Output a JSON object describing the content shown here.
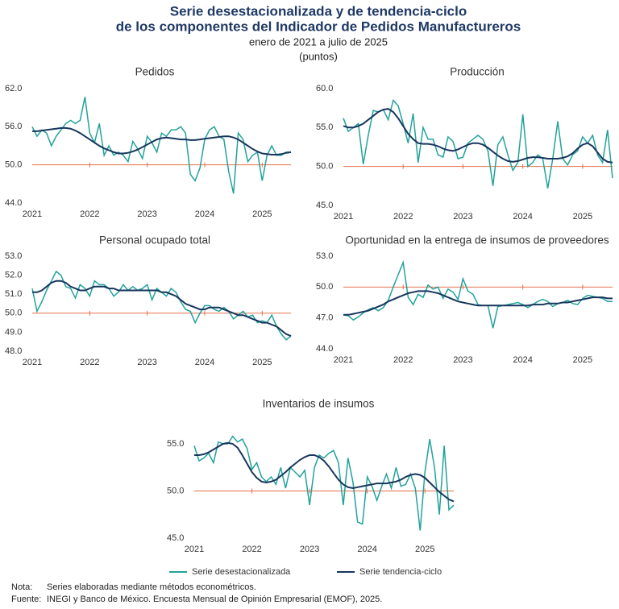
{
  "title": [
    "Serie desestacionalizada y de tendencia-ciclo",
    "de los componentes del Indicador de Pedidos Manufactureros"
  ],
  "subtitle": "enero de 2021 a julio de 2025",
  "units": "(puntos)",
  "legend": [
    {
      "name": "Serie desestacionalizada",
      "color": "#22a29c"
    },
    {
      "name": "Serie tendencia-ciclo",
      "color": "#17365d"
    }
  ],
  "notes": [
    {
      "label": "Nota:",
      "text": "Series elaboradas mediante métodos econométricos."
    },
    {
      "label": "Fuente:",
      "text": "INEGI y Banco de México. Encuesta Mensual de Opinión Empresarial (EMOF), 2025."
    }
  ],
  "chart_data": [
    {
      "type": "line",
      "title": "Pedidos",
      "categories": [
        "2021",
        null,
        null,
        null,
        null,
        null,
        null,
        null,
        null,
        null,
        null,
        null,
        "2022",
        null,
        null,
        null,
        null,
        null,
        null,
        null,
        null,
        null,
        null,
        null,
        "2023",
        null,
        null,
        null,
        null,
        null,
        null,
        null,
        null,
        null,
        null,
        null,
        "2024",
        null,
        null,
        null,
        null,
        null,
        null,
        null,
        null,
        null,
        null,
        null,
        "2025",
        null,
        null,
        null,
        null,
        null,
        null
      ],
      "ylim": [
        44,
        62
      ],
      "yticks": [
        {
          "value": 44,
          "label": "44.0"
        },
        {
          "value": 50,
          "label": "50.0"
        },
        {
          "value": 56,
          "label": "56.0"
        },
        {
          "value": 62,
          "label": "62.0"
        }
      ],
      "reference_line": 50,
      "reference_color": "#e2704c",
      "series": [
        {
          "color": "#22a29c",
          "values": [
            56.0,
            54.5,
            55.5,
            55.0,
            53.0,
            54.5,
            55.5,
            56.5,
            57.0,
            56.5,
            57.0,
            60.7,
            55.0,
            53.5,
            56.5,
            51.5,
            53.0,
            51.5,
            52.0,
            51.5,
            50.5,
            53.7,
            52.5,
            51.0,
            54.5,
            53.5,
            52.0,
            55.0,
            54.5,
            55.5,
            55.5,
            56.0,
            55.0,
            48.5,
            47.5,
            49.5,
            54.0,
            55.5,
            56.0,
            54.5,
            54.0,
            49.0,
            45.5,
            55.0,
            54.0,
            50.5,
            51.5,
            52.0,
            47.5,
            51.5,
            53.0,
            51.5,
            51.5,
            52.0,
            52.0
          ]
        },
        {
          "color": "#17365d",
          "values": [
            55.3,
            55.3,
            55.4,
            55.5,
            55.6,
            55.7,
            55.8,
            55.8,
            55.7,
            55.4,
            55.0,
            54.5,
            54.0,
            53.5,
            53.0,
            52.6,
            52.3,
            52.0,
            51.8,
            51.8,
            51.9,
            52.1,
            52.4,
            52.8,
            53.2,
            53.6,
            54.0,
            54.2,
            54.3,
            54.2,
            54.1,
            54.0,
            54.0,
            53.9,
            53.9,
            54.0,
            54.1,
            54.2,
            54.3,
            54.4,
            54.5,
            54.5,
            54.3,
            54.0,
            53.5,
            53.0,
            52.5,
            52.1,
            51.8,
            51.7,
            51.6,
            51.6,
            51.7,
            51.9,
            52.0
          ]
        }
      ]
    },
    {
      "type": "line",
      "title": "Producción",
      "categories": [
        "2021",
        null,
        null,
        null,
        null,
        null,
        null,
        null,
        null,
        null,
        null,
        null,
        "2022",
        null,
        null,
        null,
        null,
        null,
        null,
        null,
        null,
        null,
        null,
        null,
        "2023",
        null,
        null,
        null,
        null,
        null,
        null,
        null,
        null,
        null,
        null,
        null,
        "2024",
        null,
        null,
        null,
        null,
        null,
        null,
        null,
        null,
        null,
        null,
        null,
        "2025",
        null,
        null,
        null,
        null,
        null,
        null
      ],
      "ylim": [
        45,
        60
      ],
      "yticks": [
        {
          "value": 45,
          "label": "45.0"
        },
        {
          "value": 50,
          "label": "50.0"
        },
        {
          "value": 55,
          "label": "55.0"
        },
        {
          "value": 60,
          "label": "60.0"
        }
      ],
      "reference_line": 50,
      "reference_color": "#e2704c",
      "series": [
        {
          "color": "#22a29c",
          "values": [
            56.2,
            54.5,
            55.0,
            55.5,
            50.3,
            54.0,
            57.2,
            57.0,
            57.3,
            56.0,
            58.5,
            57.8,
            55.5,
            53.0,
            56.8,
            50.5,
            55.0,
            53.5,
            53.5,
            51.5,
            51.2,
            53.8,
            53.2,
            51.0,
            51.2,
            53.0,
            53.5,
            54.0,
            53.5,
            52.0,
            47.5,
            52.8,
            53.8,
            51.5,
            49.5,
            50.5,
            56.7,
            50.0,
            50.5,
            51.5,
            51.0,
            47.2,
            51.0,
            55.8,
            51.0,
            50.2,
            51.5,
            52.0,
            53.8,
            53.0,
            54.0,
            51.5,
            50.5,
            54.7,
            48.5
          ]
        },
        {
          "color": "#17365d",
          "values": [
            55.2,
            55.0,
            55.0,
            55.2,
            55.5,
            56.0,
            56.5,
            57.0,
            57.3,
            57.4,
            57.0,
            56.2,
            55.2,
            54.2,
            53.5,
            53.0,
            52.9,
            52.9,
            52.8,
            52.6,
            52.3,
            52.1,
            52.0,
            52.2,
            52.5,
            52.8,
            53.0,
            53.0,
            52.8,
            52.4,
            51.9,
            51.4,
            51.0,
            50.7,
            50.6,
            50.7,
            50.9,
            51.1,
            51.2,
            51.2,
            51.1,
            51.0,
            51.0,
            51.0,
            51.1,
            51.3,
            51.7,
            52.3,
            52.8,
            53.0,
            52.6,
            51.8,
            51.0,
            50.6,
            50.5
          ]
        }
      ]
    },
    {
      "type": "line",
      "title": "Personal ocupado total",
      "categories": [
        "2021",
        null,
        null,
        null,
        null,
        null,
        null,
        null,
        null,
        null,
        null,
        null,
        "2022",
        null,
        null,
        null,
        null,
        null,
        null,
        null,
        null,
        null,
        null,
        null,
        "2023",
        null,
        null,
        null,
        null,
        null,
        null,
        null,
        null,
        null,
        null,
        null,
        "2024",
        null,
        null,
        null,
        null,
        null,
        null,
        null,
        null,
        null,
        null,
        null,
        "2025",
        null,
        null,
        null,
        null,
        null,
        null
      ],
      "ylim": [
        48,
        53
      ],
      "yticks": [
        {
          "value": 48,
          "label": "48.0"
        },
        {
          "value": 49,
          "label": "49.0"
        },
        {
          "value": 50,
          "label": "50.0"
        },
        {
          "value": 51,
          "label": "51.0"
        },
        {
          "value": 52,
          "label": "52.0"
        },
        {
          "value": 53,
          "label": "53.0"
        }
      ],
      "reference_line": 50,
      "reference_color": "#e2704c",
      "series": [
        {
          "color": "#22a29c",
          "values": [
            51.3,
            50.1,
            50.6,
            51.2,
            51.7,
            52.2,
            52.0,
            51.4,
            51.3,
            50.8,
            51.5,
            51.3,
            50.9,
            51.7,
            51.5,
            51.5,
            51.3,
            50.9,
            51.1,
            51.5,
            51.2,
            51.4,
            51.2,
            51.3,
            51.5,
            50.7,
            51.3,
            51.1,
            50.9,
            51.3,
            51.1,
            50.6,
            50.2,
            50.1,
            49.5,
            50.0,
            50.4,
            50.4,
            50.2,
            50.1,
            50.3,
            50.1,
            49.7,
            49.9,
            50.1,
            49.8,
            49.9,
            49.5,
            49.6,
            49.5,
            49.9,
            49.3,
            48.9,
            48.6,
            48.8
          ]
        },
        {
          "color": "#17365d",
          "values": [
            51.1,
            51.1,
            51.2,
            51.4,
            51.6,
            51.7,
            51.7,
            51.6,
            51.4,
            51.3,
            51.2,
            51.2,
            51.3,
            51.4,
            51.4,
            51.4,
            51.3,
            51.3,
            51.2,
            51.2,
            51.2,
            51.2,
            51.2,
            51.2,
            51.2,
            51.2,
            51.2,
            51.1,
            51.1,
            51.0,
            50.9,
            50.7,
            50.5,
            50.4,
            50.3,
            50.2,
            50.2,
            50.3,
            50.3,
            50.3,
            50.2,
            50.1,
            50.0,
            49.9,
            49.9,
            49.8,
            49.7,
            49.6,
            49.5,
            49.5,
            49.4,
            49.3,
            49.1,
            48.9,
            48.8
          ]
        }
      ]
    },
    {
      "type": "line",
      "title": "Oportunidad en la entrega de insumos de proveedores",
      "categories": [
        "2021",
        null,
        null,
        null,
        null,
        null,
        null,
        null,
        null,
        null,
        null,
        null,
        "2022",
        null,
        null,
        null,
        null,
        null,
        null,
        null,
        null,
        null,
        null,
        null,
        "2023",
        null,
        null,
        null,
        null,
        null,
        null,
        null,
        null,
        null,
        null,
        null,
        "2024",
        null,
        null,
        null,
        null,
        null,
        null,
        null,
        null,
        null,
        null,
        null,
        "2025",
        null,
        null,
        null,
        null,
        null,
        null
      ],
      "ylim": [
        44,
        53
      ],
      "yticks": [
        {
          "value": 44,
          "label": "44.0"
        },
        {
          "value": 47,
          "label": "47.0"
        },
        {
          "value": 50,
          "label": "50.0"
        },
        {
          "value": 53,
          "label": "53.0"
        }
      ],
      "reference_line": 50,
      "reference_color": "#e2704c",
      "series": [
        {
          "color": "#22a29c",
          "values": [
            47.3,
            47.2,
            46.8,
            47.1,
            47.5,
            47.8,
            48.0,
            47.7,
            48.0,
            48.7,
            50.0,
            51.2,
            52.4,
            49.0,
            48.3,
            49.3,
            49.0,
            50.2,
            49.8,
            50.0,
            48.9,
            49.8,
            49.5,
            48.8,
            50.8,
            49.6,
            49.3,
            48.3,
            48.2,
            48.2,
            46.0,
            48.1,
            48.2,
            48.3,
            48.4,
            48.5,
            48.3,
            48.0,
            48.3,
            48.6,
            48.8,
            48.6,
            48.1,
            48.4,
            48.5,
            48.7,
            48.4,
            48.3,
            48.9,
            49.2,
            49.1,
            49.0,
            48.9,
            48.6,
            48.6
          ]
        },
        {
          "color": "#17365d",
          "values": [
            47.3,
            47.3,
            47.4,
            47.5,
            47.6,
            47.7,
            47.9,
            48.1,
            48.3,
            48.6,
            48.8,
            49.0,
            49.2,
            49.4,
            49.5,
            49.6,
            49.6,
            49.6,
            49.5,
            49.4,
            49.2,
            49.0,
            48.8,
            48.6,
            48.5,
            48.4,
            48.3,
            48.2,
            48.2,
            48.2,
            48.2,
            48.2,
            48.2,
            48.2,
            48.2,
            48.2,
            48.2,
            48.2,
            48.3,
            48.3,
            48.3,
            48.4,
            48.4,
            48.4,
            48.5,
            48.5,
            48.6,
            48.7,
            48.8,
            48.9,
            49.0,
            49.0,
            49.0,
            48.9,
            48.9
          ]
        }
      ]
    },
    {
      "type": "line",
      "title": "Inventarios de insumos",
      "categories": [
        "2021",
        null,
        null,
        null,
        null,
        null,
        null,
        null,
        null,
        null,
        null,
        null,
        "2022",
        null,
        null,
        null,
        null,
        null,
        null,
        null,
        null,
        null,
        null,
        null,
        "2023",
        null,
        null,
        null,
        null,
        null,
        null,
        null,
        null,
        null,
        null,
        null,
        "2024",
        null,
        null,
        null,
        null,
        null,
        null,
        null,
        null,
        null,
        null,
        null,
        "2025",
        null,
        null,
        null,
        null,
        null,
        null
      ],
      "ylim": [
        45,
        55
      ],
      "yticks": [
        {
          "value": 45,
          "label": "45.0"
        },
        {
          "value": 50,
          "label": "50.0"
        },
        {
          "value": 55,
          "label": "55.0"
        }
      ],
      "reference_line": 50,
      "reference_color": "#e2704c",
      "series": [
        {
          "color": "#22a29c",
          "values": [
            54.8,
            53.2,
            53.5,
            54.0,
            53.0,
            55.2,
            55.0,
            55.0,
            55.8,
            55.2,
            55.5,
            54.5,
            52.3,
            53.0,
            51.5,
            51.0,
            51.5,
            50.7,
            52.5,
            50.3,
            52.5,
            52.0,
            51.5,
            52.2,
            48.5,
            52.5,
            53.8,
            53.5,
            54.0,
            54.3,
            53.0,
            48.5,
            53.5,
            51.0,
            46.7,
            46.5,
            51.5,
            50.5,
            49.0,
            50.5,
            51.8,
            50.3,
            52.5,
            50.5,
            50.7,
            51.8,
            50.3,
            45.8,
            52.0,
            55.5,
            52.5,
            47.5,
            54.8,
            48.0,
            48.5
          ]
        },
        {
          "color": "#17365d",
          "values": [
            53.8,
            53.8,
            53.9,
            54.1,
            54.4,
            54.7,
            55.0,
            55.1,
            55.0,
            54.6,
            53.8,
            52.9,
            52.0,
            51.4,
            51.0,
            50.9,
            51.0,
            51.2,
            51.6,
            52.0,
            52.5,
            52.9,
            53.3,
            53.6,
            53.8,
            53.8,
            53.6,
            53.2,
            52.6,
            51.9,
            51.2,
            50.7,
            50.4,
            50.3,
            50.4,
            50.5,
            50.6,
            50.7,
            50.8,
            50.8,
            50.8,
            50.9,
            51.0,
            51.2,
            51.5,
            51.7,
            51.8,
            51.7,
            51.4,
            50.9,
            50.4,
            49.9,
            49.5,
            49.1,
            48.9
          ]
        }
      ]
    }
  ]
}
